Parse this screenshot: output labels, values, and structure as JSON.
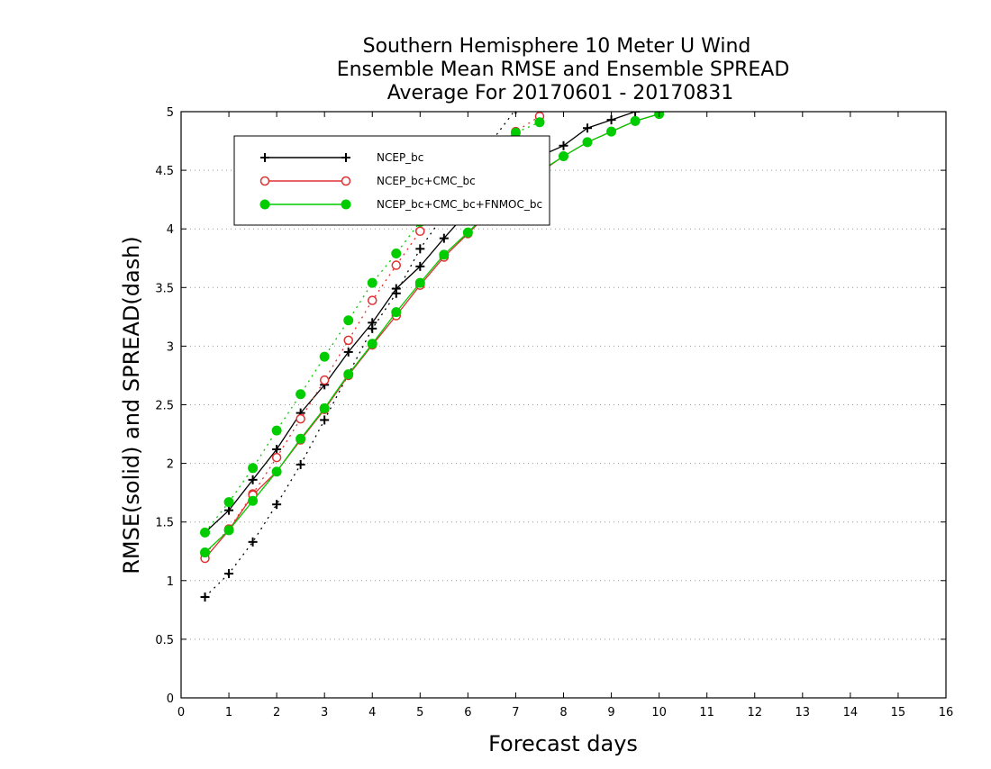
{
  "chart_data": {
    "type": "line",
    "title": [
      "Southern Hemisphere 10 Meter U Wind",
      "Ensemble Mean RMSE and Ensemble SPREAD",
      "Average For 20170601 - 20170831"
    ],
    "xlabel": "Forecast days",
    "ylabel": "RMSE(solid) and SPREAD(dash)",
    "xlim": [
      0,
      16
    ],
    "ylim": [
      0,
      5
    ],
    "xticks": [
      "0",
      "1",
      "2",
      "3",
      "4",
      "5",
      "6",
      "7",
      "8",
      "9",
      "10",
      "11",
      "12",
      "13",
      "14",
      "15",
      "16"
    ],
    "yticks": [
      "0",
      "0.5",
      "1",
      "1.5",
      "2",
      "2.5",
      "3",
      "3.5",
      "4",
      "4.5",
      "5"
    ],
    "grid": "horizontal dotted",
    "legend_position": "top-left",
    "series": [
      {
        "name": "NCEP_bc",
        "color": "#000000",
        "marker": "plus",
        "rmse": {
          "x": [
            0.5,
            1,
            1.5,
            2,
            2.5,
            3,
            3.5,
            4,
            4.5,
            5,
            5.5,
            6,
            6.5,
            7,
            7.5,
            8,
            8.5,
            9,
            9.5,
            10
          ],
          "y": [
            1.41,
            1.6,
            1.86,
            2.12,
            2.43,
            2.67,
            2.95,
            3.2,
            3.49,
            3.68,
            3.92,
            4.15,
            4.38,
            4.52,
            4.62,
            4.71,
            4.86,
            4.93,
            5.0,
            5.05
          ]
        },
        "spread": {
          "x": [
            0.5,
            1,
            1.5,
            2,
            2.5,
            3,
            3.5,
            4,
            4.5,
            5,
            5.5,
            6,
            6.5,
            7
          ],
          "y": [
            0.86,
            1.06,
            1.33,
            1.65,
            1.99,
            2.37,
            2.76,
            3.15,
            3.45,
            3.83,
            4.12,
            4.45,
            4.75,
            5.02
          ]
        }
      },
      {
        "name": "NCEP_bc+CMC_bc",
        "color": "#e03030",
        "marker": "open-circle",
        "rmse": {
          "x": [
            0.5,
            1,
            1.5,
            2,
            2.5,
            3,
            3.5,
            4,
            4.5,
            5,
            5.5,
            6,
            6.5,
            7,
            7.5,
            8,
            8.5,
            9,
            9.5,
            10
          ],
          "y": [
            1.19,
            1.43,
            1.73,
            1.93,
            2.2,
            2.46,
            2.75,
            3.01,
            3.26,
            3.52,
            3.76,
            3.96,
            4.16,
            4.34,
            4.48,
            4.62,
            4.74,
            4.83,
            4.92,
            4.98
          ]
        },
        "spread": {
          "x": [
            0.5,
            1,
            1.5,
            2,
            2.5,
            3,
            3.5,
            4,
            4.5,
            5,
            5.5,
            6,
            6.5,
            7,
            7.5
          ],
          "y": [
            1.23,
            1.44,
            1.74,
            2.05,
            2.38,
            2.71,
            3.05,
            3.39,
            3.69,
            3.98,
            4.26,
            4.48,
            4.64,
            4.83,
            4.96
          ]
        }
      },
      {
        "name": "NCEP_bc+CMC_bc+FNMOC_bc",
        "color": "#00cc00",
        "marker": "filled-circle",
        "rmse": {
          "x": [
            0.5,
            1,
            1.5,
            2,
            2.5,
            3,
            3.5,
            4,
            4.5,
            5,
            5.5,
            6,
            6.5,
            7,
            7.5,
            8,
            8.5,
            9,
            9.5,
            10
          ],
          "y": [
            1.24,
            1.43,
            1.68,
            1.93,
            2.21,
            2.47,
            2.76,
            3.02,
            3.29,
            3.54,
            3.78,
            3.97,
            4.17,
            4.35,
            4.49,
            4.62,
            4.74,
            4.83,
            4.92,
            4.98
          ]
        },
        "spread": {
          "x": [
            0.5,
            1,
            1.5,
            2,
            2.5,
            3,
            3.5,
            4,
            4.5,
            5,
            5.5,
            6,
            6.5,
            7,
            7.5
          ],
          "y": [
            1.41,
            1.67,
            1.96,
            2.28,
            2.59,
            2.91,
            3.22,
            3.54,
            3.79,
            4.06,
            4.3,
            4.52,
            4.7,
            4.82,
            4.91
          ]
        }
      }
    ]
  }
}
